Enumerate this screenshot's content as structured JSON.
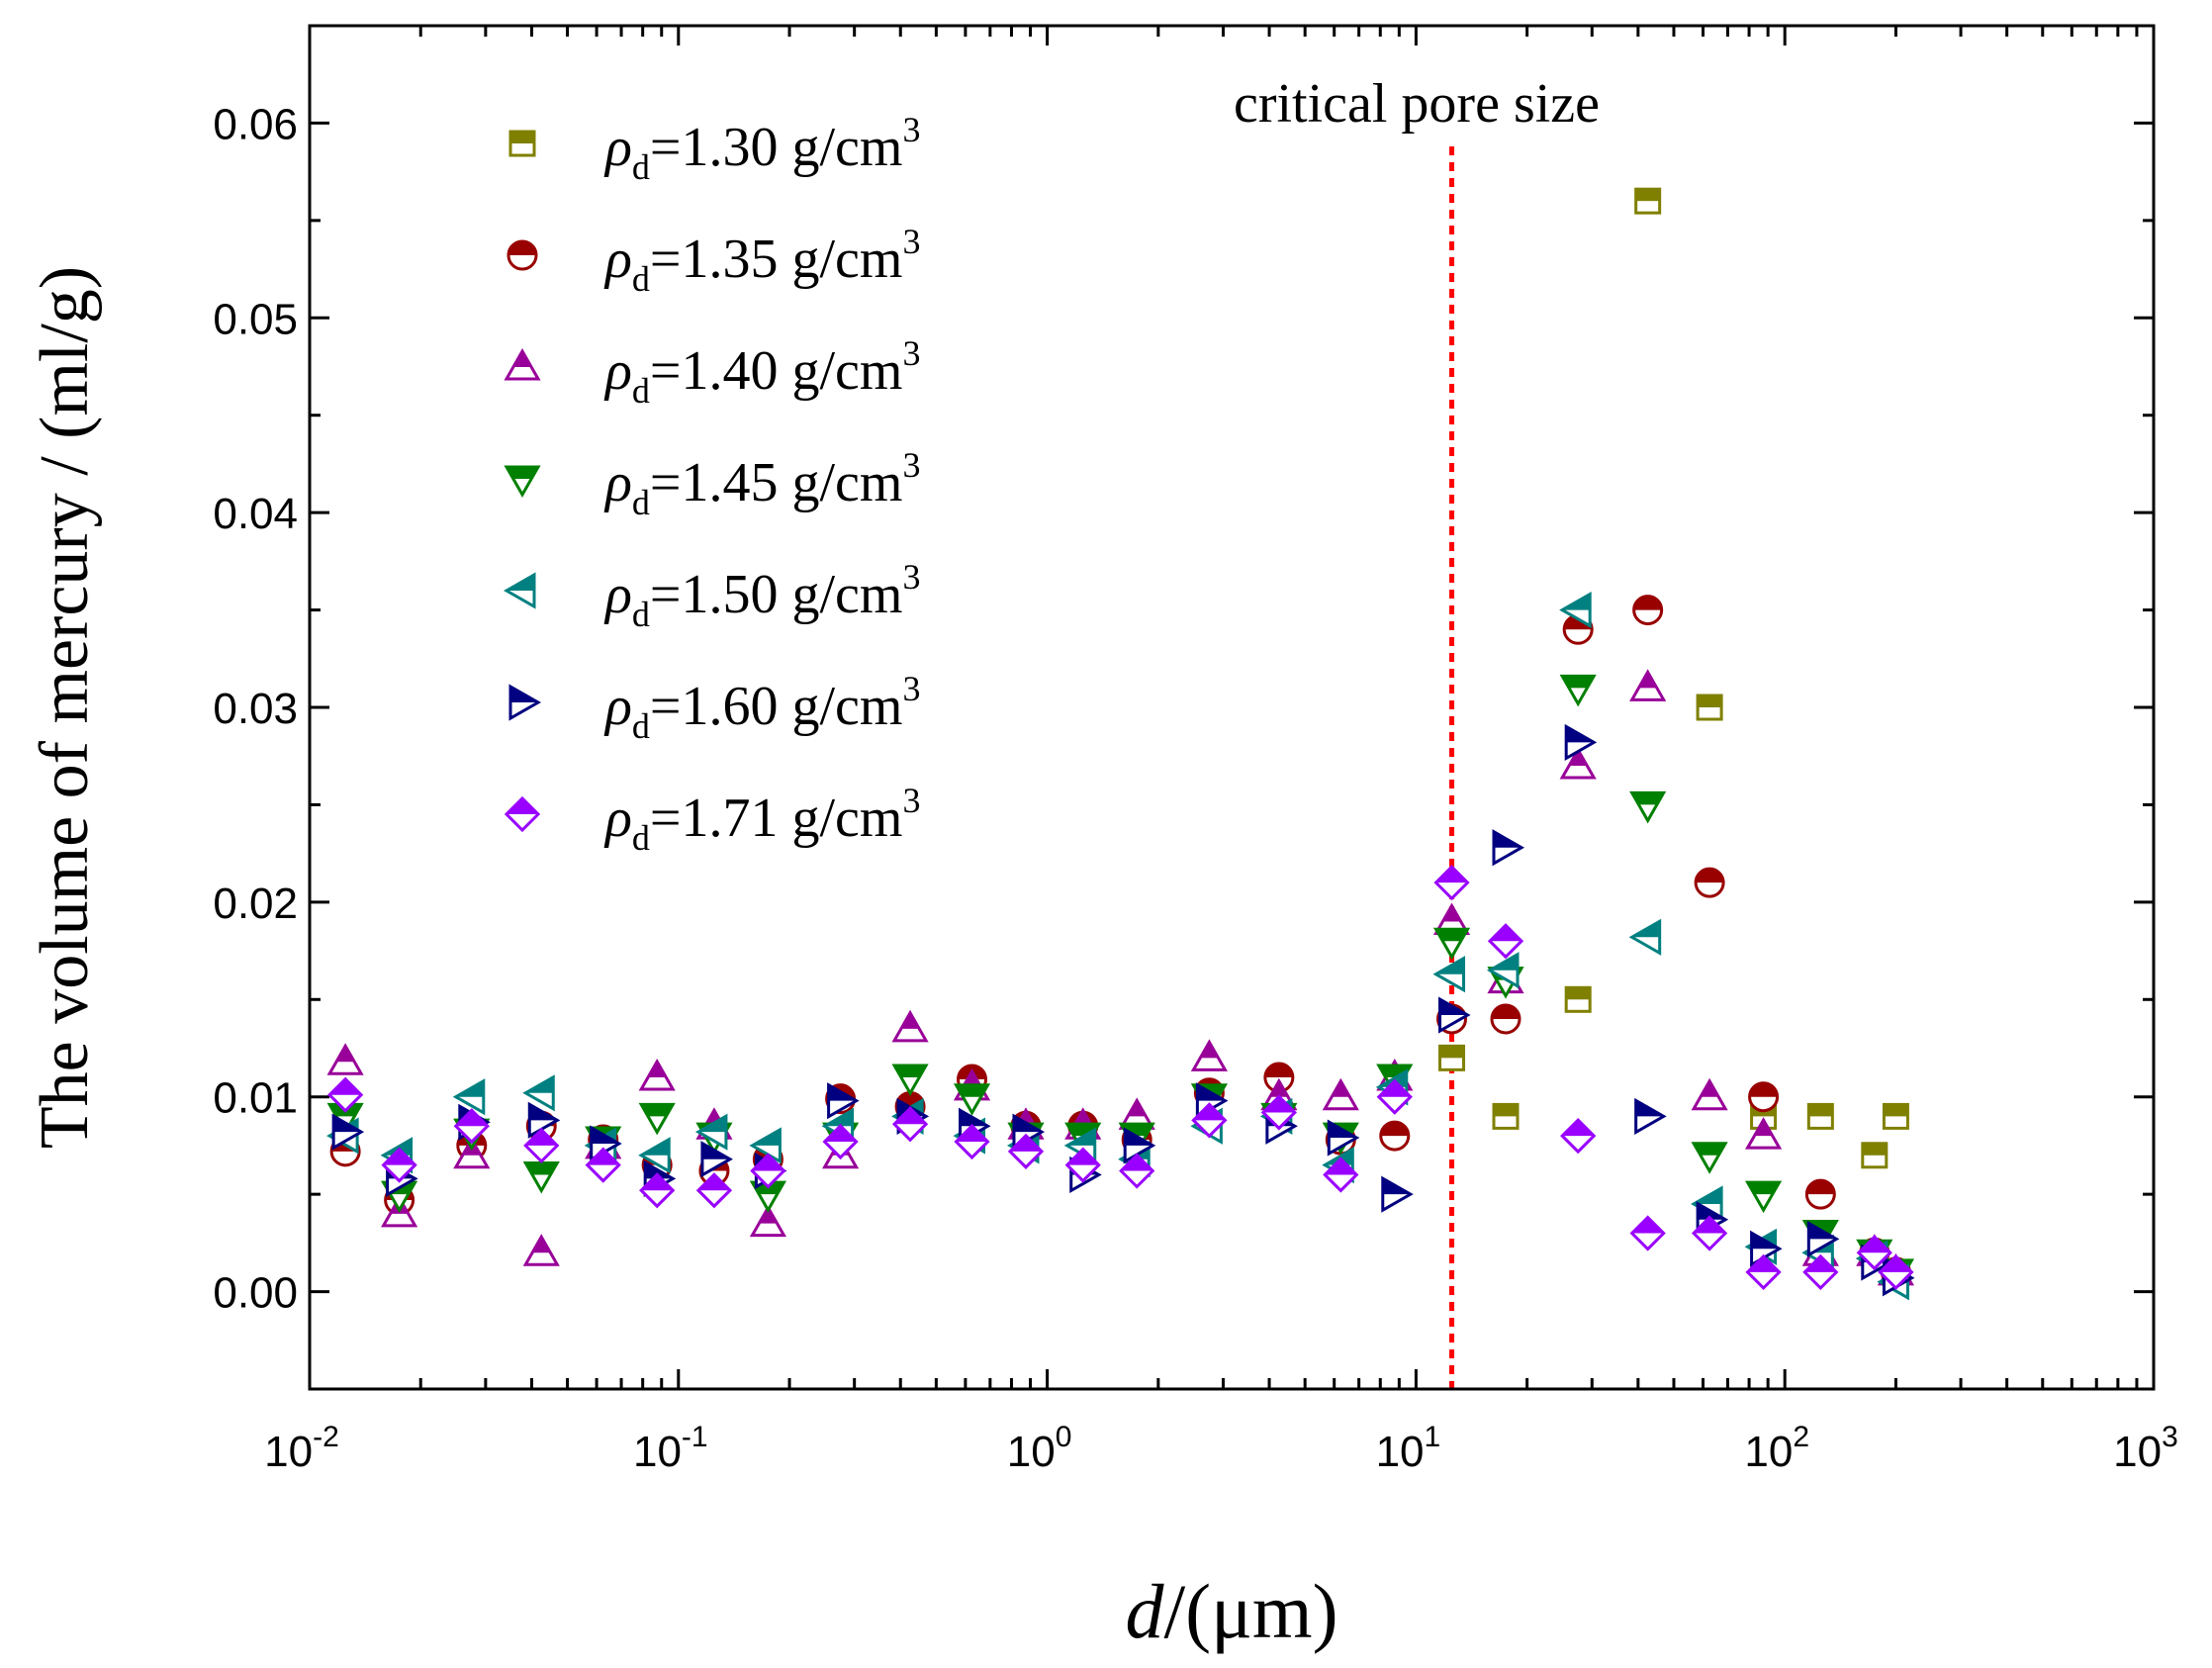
{
  "chart_data": {
    "type": "scatter",
    "title": "",
    "xlabel": {
      "italic": "d",
      "rest": "/(μm)"
    },
    "ylabel": "The volume of mercury / (ml/g)",
    "xscale": "log",
    "xlim": [
      0.01,
      1000
    ],
    "ylim": [
      -0.005,
      0.065
    ],
    "yticks": [
      "0.00",
      "0.01",
      "0.02",
      "0.03",
      "0.04",
      "0.05",
      "0.06"
    ],
    "xticks": [
      {
        "base": "10",
        "exp": "-2"
      },
      {
        "base": "10",
        "exp": "-1"
      },
      {
        "base": "10",
        "exp": "0"
      },
      {
        "base": "10",
        "exp": "1"
      },
      {
        "base": "10",
        "exp": "2"
      },
      {
        "base": "10",
        "exp": "3"
      }
    ],
    "annotation": {
      "text": "critical pore size",
      "x": 12.5
    },
    "legend_position": "top-left",
    "series": [
      {
        "name": "ρd=1.30 g/cm3",
        "label": {
          "rho": "ρ",
          "sub": "d",
          "value": "=1.30 g/cm",
          "sup": "3"
        },
        "marker": "square",
        "color": "#808000",
        "points": [
          [
            12.5,
            0.012
          ],
          [
            17.5,
            0.009
          ],
          [
            27.5,
            0.015
          ],
          [
            42.5,
            0.056
          ],
          [
            62.5,
            0.03
          ],
          [
            87.5,
            0.009
          ],
          [
            125,
            0.009
          ],
          [
            175,
            0.007
          ],
          [
            200,
            0.009
          ]
        ]
      },
      {
        "name": "ρd=1.35 g/cm3",
        "label": {
          "rho": "ρ",
          "sub": "d",
          "value": "=1.35 g/cm",
          "sup": "3"
        },
        "marker": "circle",
        "color": "#990000",
        "points": [
          [
            0.0125,
            0.0072
          ],
          [
            0.0175,
            0.0047
          ],
          [
            0.0275,
            0.0075
          ],
          [
            0.0425,
            0.0085
          ],
          [
            0.0625,
            0.0078
          ],
          [
            0.0875,
            0.0065
          ],
          [
            0.125,
            0.0062
          ],
          [
            0.175,
            0.0068
          ],
          [
            0.275,
            0.0099
          ],
          [
            0.425,
            0.0095
          ],
          [
            0.625,
            0.0109
          ],
          [
            0.875,
            0.0085
          ],
          [
            1.25,
            0.0085
          ],
          [
            1.75,
            0.0078
          ],
          [
            2.75,
            0.0102
          ],
          [
            4.25,
            0.011
          ],
          [
            6.25,
            0.0078
          ],
          [
            8.75,
            0.008
          ],
          [
            12.5,
            0.014
          ],
          [
            17.5,
            0.014
          ],
          [
            27.5,
            0.034
          ],
          [
            42.5,
            0.035
          ],
          [
            62.5,
            0.021
          ],
          [
            87.5,
            0.01
          ],
          [
            125,
            0.005
          ],
          [
            175,
            0.002
          ],
          [
            200,
            0.001
          ]
        ]
      },
      {
        "name": "ρd=1.40 g/cm3",
        "label": {
          "rho": "ρ",
          "sub": "d",
          "value": "=1.40 g/cm",
          "sup": "3"
        },
        "marker": "triangle-up",
        "color": "#990099",
        "points": [
          [
            0.0125,
            0.0118
          ],
          [
            0.0175,
            0.004
          ],
          [
            0.0275,
            0.007
          ],
          [
            0.0425,
            0.002
          ],
          [
            0.0625,
            0.0075
          ],
          [
            0.0875,
            0.011
          ],
          [
            0.125,
            0.0085
          ],
          [
            0.175,
            0.0035
          ],
          [
            0.275,
            0.007
          ],
          [
            0.425,
            0.0135
          ],
          [
            0.625,
            0.0105
          ],
          [
            0.875,
            0.0085
          ],
          [
            1.25,
            0.0085
          ],
          [
            1.75,
            0.009
          ],
          [
            2.75,
            0.012
          ],
          [
            4.25,
            0.01
          ],
          [
            6.25,
            0.01
          ],
          [
            8.75,
            0.011
          ],
          [
            12.5,
            0.019
          ],
          [
            17.5,
            0.016
          ],
          [
            27.5,
            0.027
          ],
          [
            42.5,
            0.031
          ],
          [
            62.5,
            0.01
          ],
          [
            87.5,
            0.008
          ],
          [
            125,
            0.002
          ],
          [
            175,
            0.002
          ],
          [
            200,
            0.001
          ]
        ]
      },
      {
        "name": "ρd=1.45 g/cm3",
        "label": {
          "rho": "ρ",
          "sub": "d",
          "value": "=1.45 g/cm",
          "sup": "3"
        },
        "marker": "triangle-down",
        "color": "#008000",
        "points": [
          [
            0.0125,
            0.009
          ],
          [
            0.0175,
            0.005
          ],
          [
            0.0275,
            0.0082
          ],
          [
            0.0425,
            0.006
          ],
          [
            0.0625,
            0.0078
          ],
          [
            0.0875,
            0.009
          ],
          [
            0.125,
            0.008
          ],
          [
            0.175,
            0.005
          ],
          [
            0.275,
            0.008
          ],
          [
            0.425,
            0.011
          ],
          [
            0.625,
            0.01
          ],
          [
            0.875,
            0.008
          ],
          [
            1.25,
            0.008
          ],
          [
            1.75,
            0.008
          ],
          [
            2.75,
            0.01
          ],
          [
            4.25,
            0.009
          ],
          [
            6.25,
            0.008
          ],
          [
            8.75,
            0.011
          ],
          [
            12.5,
            0.018
          ],
          [
            17.5,
            0.016
          ],
          [
            27.5,
            0.031
          ],
          [
            42.5,
            0.025
          ],
          [
            62.5,
            0.007
          ],
          [
            87.5,
            0.005
          ],
          [
            125,
            0.003
          ],
          [
            175,
            0.002
          ],
          [
            200,
            0.001
          ]
        ]
      },
      {
        "name": "ρd=1.50 g/cm3",
        "label": {
          "rho": "ρ",
          "sub": "d",
          "value": "=1.50 g/cm",
          "sup": "3"
        },
        "marker": "triangle-left",
        "color": "#008080",
        "points": [
          [
            0.0125,
            0.008
          ],
          [
            0.0175,
            0.007
          ],
          [
            0.0275,
            0.01
          ],
          [
            0.0425,
            0.0102
          ],
          [
            0.0625,
            0.0075
          ],
          [
            0.0875,
            0.007
          ],
          [
            0.125,
            0.0082
          ],
          [
            0.175,
            0.0075
          ],
          [
            0.275,
            0.0085
          ],
          [
            0.425,
            0.009
          ],
          [
            0.625,
            0.008
          ],
          [
            0.875,
            0.0075
          ],
          [
            1.25,
            0.0075
          ],
          [
            1.75,
            0.0068
          ],
          [
            2.75,
            0.0085
          ],
          [
            4.25,
            0.009
          ],
          [
            6.25,
            0.0065
          ],
          [
            8.75,
            0.0105
          ],
          [
            12.5,
            0.0163
          ],
          [
            17.5,
            0.0165
          ],
          [
            27.5,
            0.035
          ],
          [
            42.5,
            0.0182
          ],
          [
            62.5,
            0.0045
          ],
          [
            87.5,
            0.0023
          ],
          [
            125,
            0.002
          ],
          [
            175,
            0.0017
          ],
          [
            200,
            0.0005
          ]
        ]
      },
      {
        "name": "ρd=1.60 g/cm3",
        "label": {
          "rho": "ρ",
          "sub": "d",
          "value": "=1.60 g/cm",
          "sup": "3"
        },
        "marker": "triangle-right",
        "color": "#000080",
        "points": [
          [
            0.0125,
            0.0082
          ],
          [
            0.0175,
            0.0058
          ],
          [
            0.0275,
            0.0087
          ],
          [
            0.0425,
            0.0088
          ],
          [
            0.0625,
            0.0076
          ],
          [
            0.0875,
            0.0058
          ],
          [
            0.125,
            0.0068
          ],
          [
            0.175,
            0.0062
          ],
          [
            0.275,
            0.0098
          ],
          [
            0.425,
            0.009
          ],
          [
            0.625,
            0.0085
          ],
          [
            0.875,
            0.0082
          ],
          [
            1.25,
            0.006
          ],
          [
            1.75,
            0.0075
          ],
          [
            2.75,
            0.0098
          ],
          [
            4.25,
            0.0085
          ],
          [
            6.25,
            0.0079
          ],
          [
            8.75,
            0.005
          ],
          [
            12.5,
            0.0142
          ],
          [
            17.5,
            0.0228
          ],
          [
            27.5,
            0.0282
          ],
          [
            42.5,
            0.009
          ],
          [
            62.5,
            0.0037
          ],
          [
            87.5,
            0.0022
          ],
          [
            125,
            0.0027
          ],
          [
            175,
            0.0015
          ],
          [
            200,
            0.0007
          ]
        ]
      },
      {
        "name": "ρd=1.71 g/cm3",
        "label": {
          "rho": "ρ",
          "sub": "d",
          "value": "=1.71 g/cm",
          "sup": "3"
        },
        "marker": "diamond",
        "color": "#9900ff",
        "points": [
          [
            0.0125,
            0.0101
          ],
          [
            0.0175,
            0.0065
          ],
          [
            0.0275,
            0.0085
          ],
          [
            0.0425,
            0.0075
          ],
          [
            0.0625,
            0.0065
          ],
          [
            0.0875,
            0.0052
          ],
          [
            0.125,
            0.0052
          ],
          [
            0.175,
            0.0062
          ],
          [
            0.275,
            0.0077
          ],
          [
            0.425,
            0.0086
          ],
          [
            0.625,
            0.0077
          ],
          [
            0.875,
            0.0072
          ],
          [
            1.25,
            0.0065
          ],
          [
            1.75,
            0.0062
          ],
          [
            2.75,
            0.0088
          ],
          [
            4.25,
            0.0092
          ],
          [
            6.25,
            0.006
          ],
          [
            8.75,
            0.01
          ],
          [
            12.5,
            0.021
          ],
          [
            17.5,
            0.018
          ],
          [
            27.5,
            0.008
          ],
          [
            42.5,
            0.003
          ],
          [
            62.5,
            0.003
          ],
          [
            87.5,
            0.001
          ],
          [
            125,
            0.001
          ],
          [
            175,
            0.002
          ],
          [
            200,
            0.001
          ]
        ]
      }
    ]
  }
}
